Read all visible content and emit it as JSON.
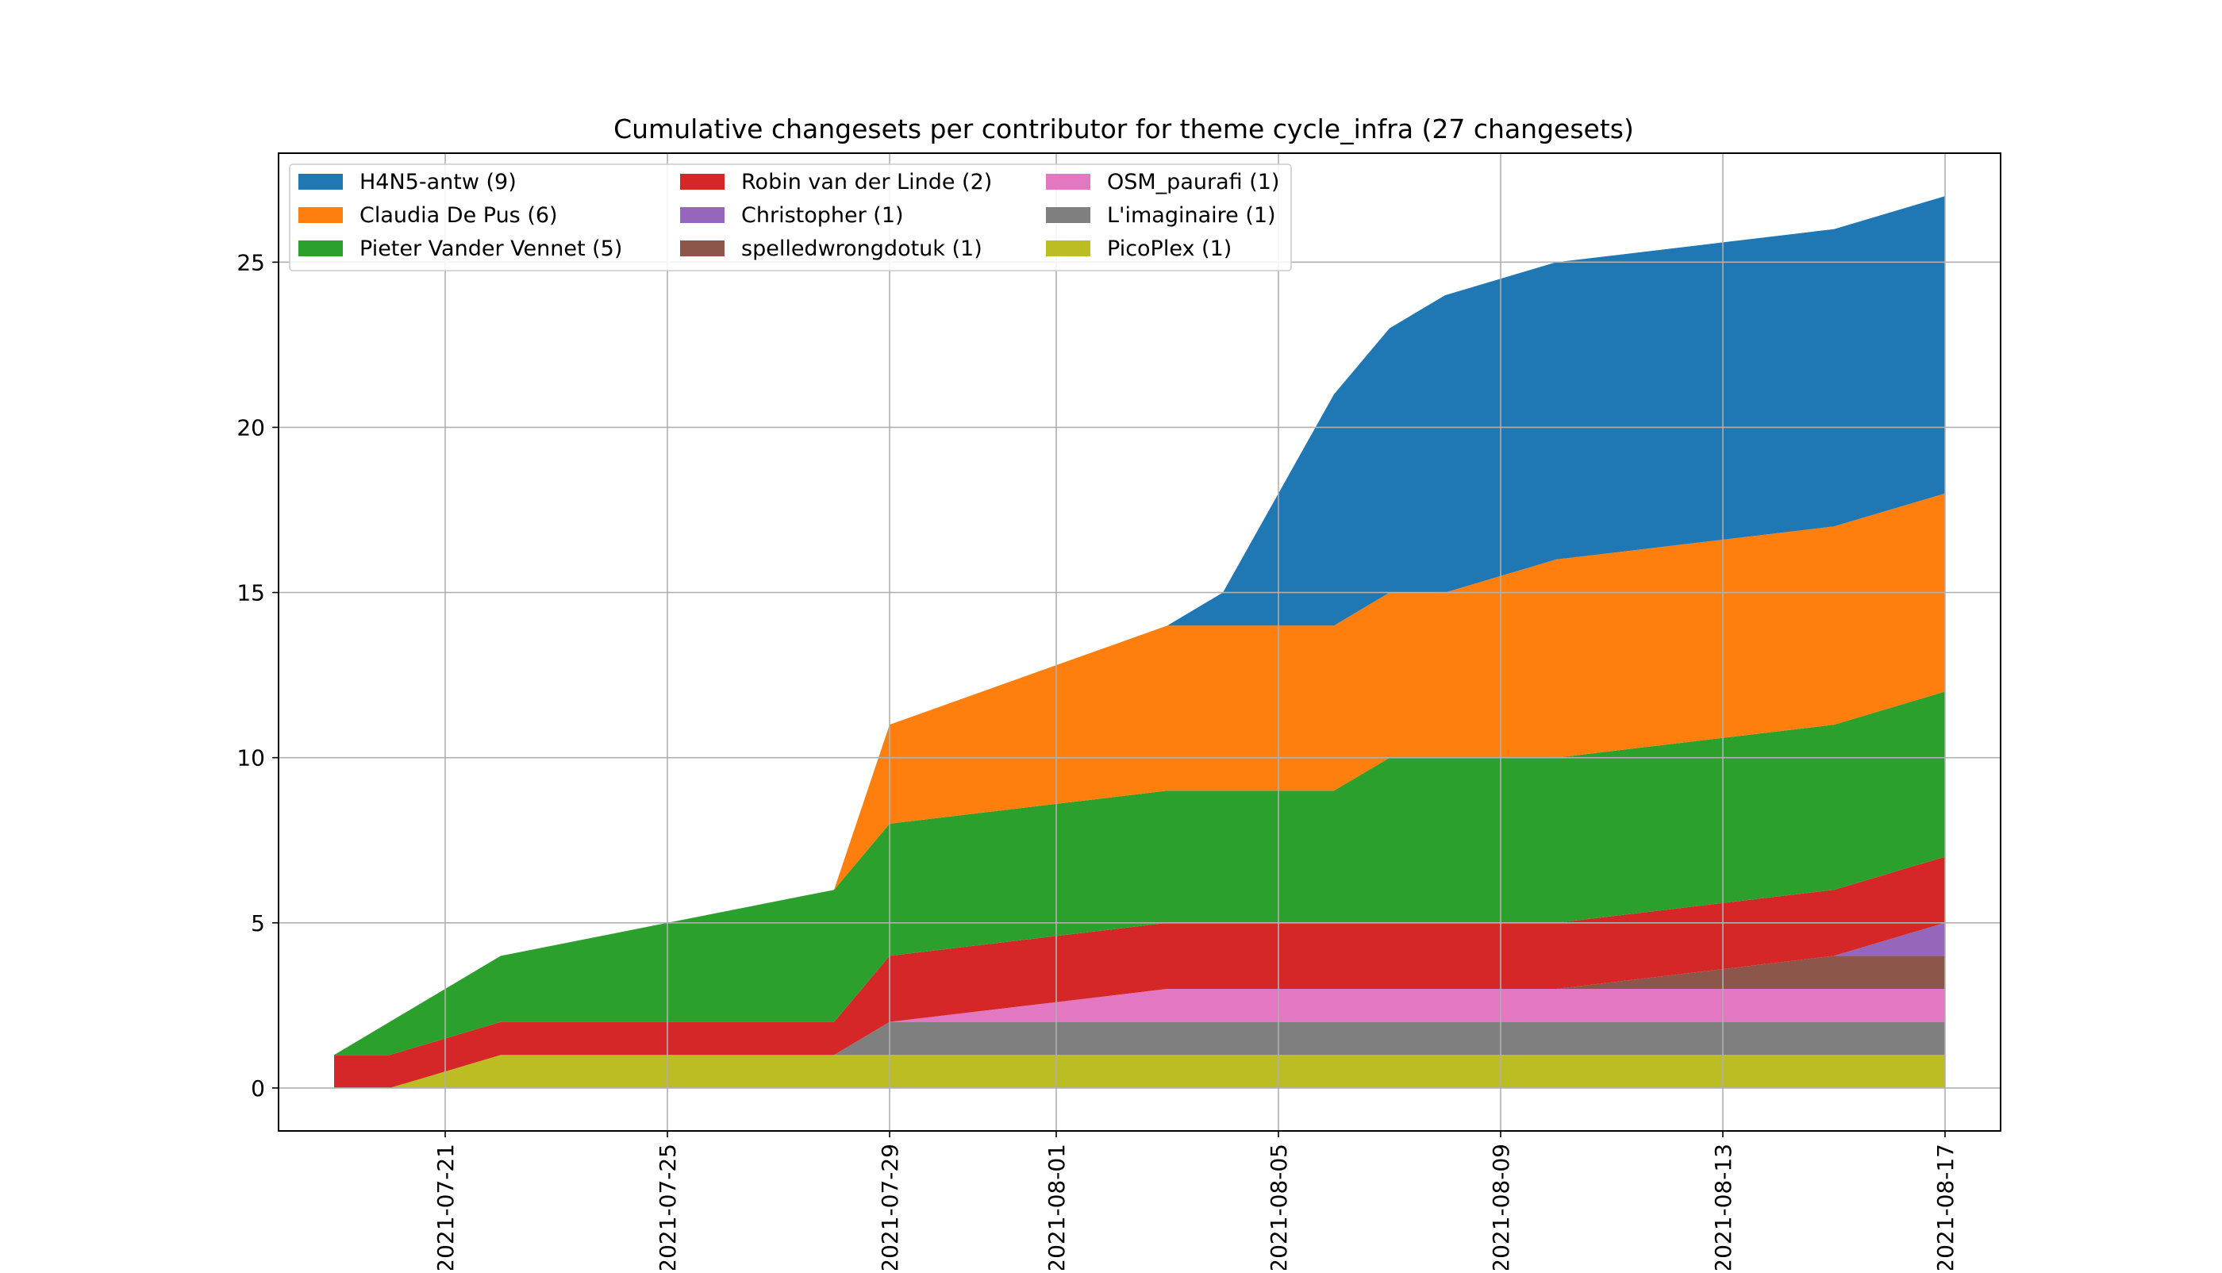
{
  "chart_data": {
    "type": "area",
    "stacked": true,
    "title": "Cumulative changesets per contributor for theme cycle_infra (27 changesets)",
    "xlabel": "",
    "ylabel": "",
    "x_axis": "date",
    "xlim": [
      "2021-07-18",
      "2021-08-18"
    ],
    "ylim": [
      -1.3,
      28.3
    ],
    "x_ticks": [
      "2021-07-21",
      "2021-07-25",
      "2021-07-29",
      "2021-08-01",
      "2021-08-05",
      "2021-08-09",
      "2021-08-13",
      "2021-08-17"
    ],
    "y_ticks": [
      0,
      5,
      10,
      15,
      20,
      25
    ],
    "grid": true,
    "legend_position": "top-left",
    "legend_columns": 3,
    "x": [
      "2021-07-19",
      "2021-07-20",
      "2021-07-21",
      "2021-07-22",
      "2021-07-25",
      "2021-07-28",
      "2021-07-29",
      "2021-08-01",
      "2021-08-03",
      "2021-08-04",
      "2021-08-06",
      "2021-08-07",
      "2021-08-08",
      "2021-08-10",
      "2021-08-13",
      "2021-08-15",
      "2021-08-17"
    ],
    "series": [
      {
        "name": "PicoPlex (1)",
        "color": "#bcbd22",
        "values": [
          0,
          0,
          0.5,
          1,
          1,
          1,
          1,
          1,
          1,
          1,
          1,
          1,
          1,
          1,
          1,
          1,
          1
        ]
      },
      {
        "name": "L'imaginaire (1)",
        "color": "#7f7f7f",
        "values": [
          0,
          0,
          0,
          0,
          0,
          0,
          1,
          1,
          1,
          1,
          1,
          1,
          1,
          1,
          1,
          1,
          1
        ]
      },
      {
        "name": "OSM_paurafi (1)",
        "color": "#e377c2",
        "values": [
          0,
          0,
          0,
          0,
          0,
          0,
          0,
          0.6,
          1,
          1,
          1,
          1,
          1,
          1,
          1,
          1,
          1
        ]
      },
      {
        "name": "spelledwrongdotuk (1)",
        "color": "#8c564b",
        "values": [
          0,
          0,
          0,
          0,
          0,
          0,
          0,
          0,
          0,
          0,
          0,
          0,
          0,
          0,
          0.6,
          1,
          1
        ]
      },
      {
        "name": "Christopher (1)",
        "color": "#9467bd",
        "values": [
          0,
          0,
          0,
          0,
          0,
          0,
          0,
          0,
          0,
          0,
          0,
          0,
          0,
          0,
          0,
          0,
          1
        ]
      },
      {
        "name": "Robin van der Linde (2)",
        "color": "#d62728",
        "values": [
          1,
          1,
          1,
          1,
          1,
          1,
          2,
          2,
          2,
          2,
          2,
          2,
          2,
          2,
          2,
          2,
          2
        ]
      },
      {
        "name": "Pieter Vander Vennet (5)",
        "color": "#2ca02c",
        "values": [
          0,
          1,
          1.5,
          2,
          3,
          4,
          4,
          4,
          4,
          4,
          4,
          5,
          5,
          5,
          5,
          5,
          5
        ]
      },
      {
        "name": "Claudia De Pus (6)",
        "color": "#ff7f0e",
        "values": [
          0,
          0,
          0,
          0,
          0,
          0,
          3,
          4.2,
          5,
          5,
          5,
          5,
          5,
          6,
          6,
          6,
          6
        ]
      },
      {
        "name": "H4N5-antw (9)",
        "color": "#1f77b4",
        "values": [
          0,
          0,
          0,
          0,
          0,
          0,
          0,
          0,
          0,
          1,
          7,
          8,
          9,
          9,
          9,
          9,
          9
        ]
      }
    ],
    "legend_order": [
      "H4N5-antw (9)",
      "Claudia De Pus (6)",
      "Pieter Vander Vennet (5)",
      "Robin van der Linde (2)",
      "Christopher (1)",
      "spelledwrongdotuk (1)",
      "OSM_paurafi (1)",
      "L'imaginaire (1)",
      "PicoPlex (1)"
    ]
  }
}
